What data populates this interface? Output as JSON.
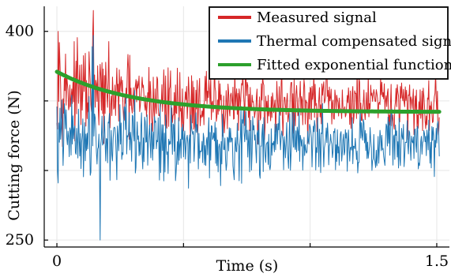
{
  "chart_data": {
    "type": "line",
    "xlabel": "Time (s)",
    "ylabel": "Cutting force (N)",
    "xlim": [
      -0.05,
      1.55
    ],
    "ylim": [
      245,
      418
    ],
    "x_tick_labels": [
      {
        "value": 0,
        "label": "0"
      },
      {
        "value": 0.5,
        "label": ""
      },
      {
        "value": 1.0,
        "label": ""
      },
      {
        "value": 1.5,
        "label": "1.5"
      }
    ],
    "y_tick_labels": [
      {
        "value": 250,
        "label": "250"
      },
      {
        "value": 300,
        "label": ""
      },
      {
        "value": 350,
        "label": ""
      },
      {
        "value": 400,
        "label": "400"
      }
    ],
    "grid": true,
    "legend_position": "top-right",
    "series": [
      {
        "name": "Measured signal",
        "color": "#d62728",
        "x_range": [
          0,
          1.51
        ],
        "sample_count": 620,
        "mean": 347,
        "amplitude_start": 40,
        "amplitude_end": 27,
        "spikes": [
          [
            0.145,
            415
          ],
          [
            0.142,
            398
          ],
          [
            0.005,
            400
          ],
          [
            0.01,
            392
          ]
        ]
      },
      {
        "name": "Thermal compensated signal",
        "color": "#1f77b4",
        "x_range": [
          0,
          1.51
        ],
        "sample_count": 620,
        "mean": 320,
        "amplitude_start": 38,
        "amplitude_end": 28,
        "spikes": [
          [
            0.17,
            250
          ],
          [
            0.005,
            291
          ],
          [
            0.145,
            397
          ],
          [
            0.14,
            389
          ]
        ]
      },
      {
        "name": "Fitted exponential function",
        "color": "#2ca02c",
        "function": "exponential",
        "x_range": [
          0,
          1.51
        ],
        "start_value": 371,
        "end_value": 342,
        "time_constant": 0.3
      }
    ]
  }
}
